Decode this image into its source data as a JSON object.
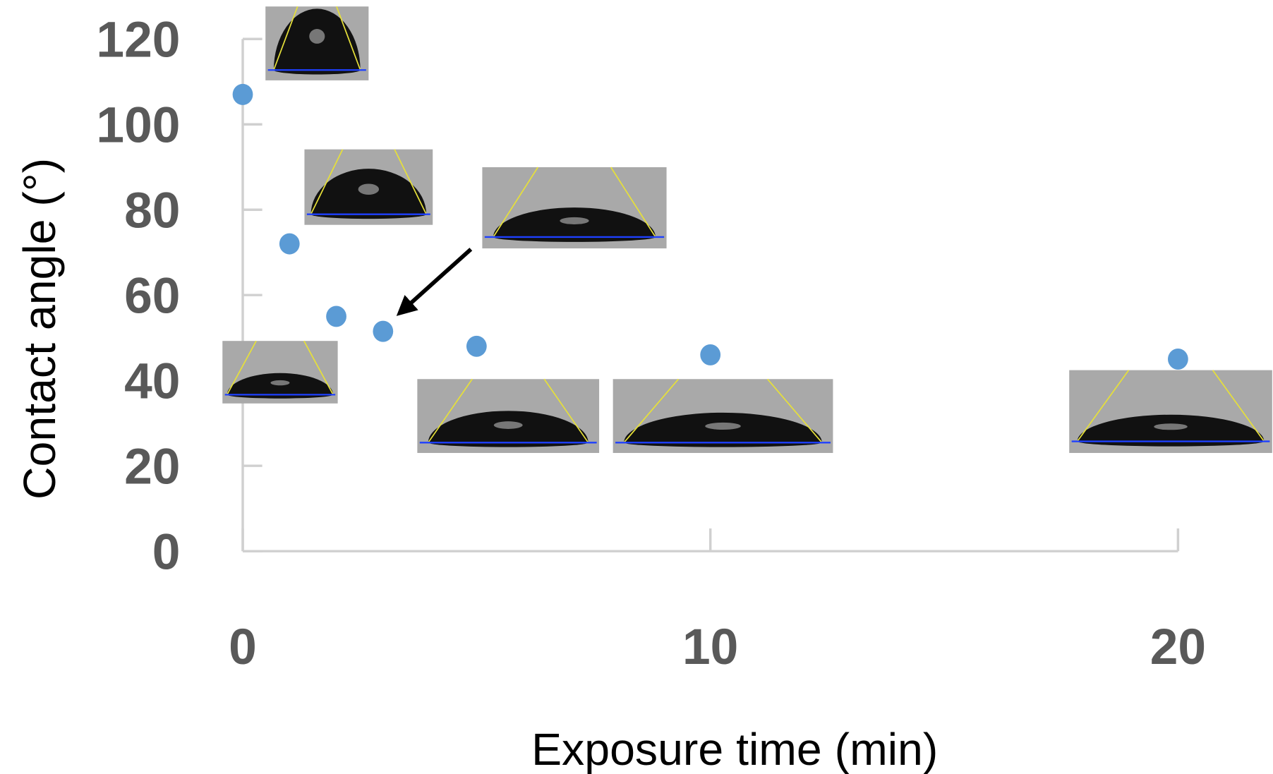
{
  "chart_data": {
    "type": "scatter",
    "x_label": "Exposure time (min)",
    "y_label": "Contact angle (°)",
    "series": [
      {
        "color": "#5b9bd5",
        "x": [
          0,
          1,
          2,
          3,
          5,
          10,
          20
        ],
        "values": [
          107,
          72,
          55,
          51.5,
          48,
          46,
          45
        ]
      }
    ],
    "xlim": [
      0,
      20
    ],
    "xticks": [
      0,
      10,
      20
    ],
    "ylim": [
      0,
      120
    ],
    "yticks": [
      0,
      20,
      40,
      60,
      80,
      100,
      120
    ]
  }
}
